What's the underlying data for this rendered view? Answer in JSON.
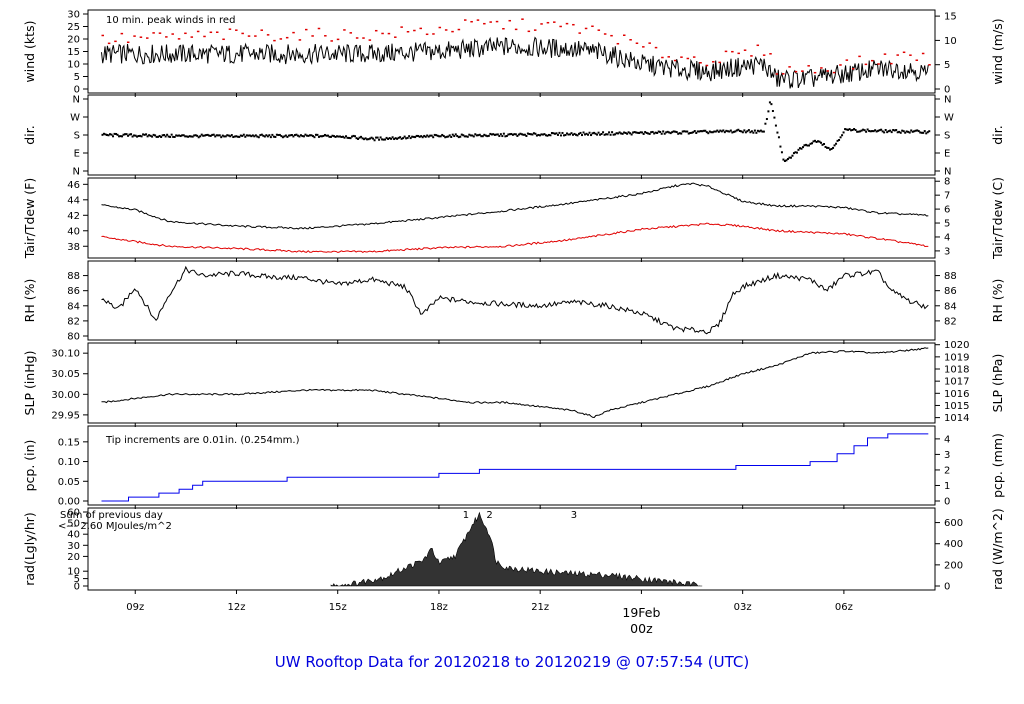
{
  "footer": "UW Rooftop Data for 20120218  to  20120219 @ 07:57:54  (UTC)",
  "colors": {
    "red": "#e00000",
    "blue": "#0000ee",
    "purple": "#9900cc",
    "black": "#000000"
  },
  "chart_data": [
    {
      "type": "line",
      "id": "wind",
      "ylabel": "wind (kts)",
      "ylabel_right": "wind (m/s)",
      "annotation": "10 min. peak winds in red",
      "ylim": [
        0,
        30
      ],
      "yticks": [
        0,
        5,
        10,
        15,
        20,
        25,
        30
      ],
      "yticks_right": [
        0,
        5,
        10,
        15
      ],
      "series": [
        {
          "color": "#000000",
          "x": [
            8.0,
            10.0,
            12.0,
            14.0,
            16.0,
            18.0,
            19.0,
            20.0,
            22.0,
            23.0,
            24.0,
            25.0,
            26.0,
            27.0,
            27.6,
            28.0,
            29.0,
            30.0,
            31.0,
            32.0,
            32.5
          ],
          "values": [
            14,
            14,
            14,
            14,
            14,
            15,
            16,
            17,
            16,
            14,
            10,
            8,
            7,
            9,
            10,
            4,
            4,
            6,
            8,
            8,
            6
          ]
        },
        {
          "color": "#e00000",
          "style": "dots",
          "x": [
            8.0,
            10.0,
            12.0,
            14.0,
            16.0,
            18.0,
            19.0,
            20.0,
            22.0,
            23.0,
            24.0,
            25.0,
            26.0,
            27.0,
            27.6,
            28.0,
            29.0,
            30.0,
            31.0,
            32.0,
            32.5
          ],
          "values": [
            20,
            21,
            22,
            22,
            22,
            24,
            26,
            26,
            25,
            22,
            17,
            13,
            12,
            14,
            16,
            8,
            8,
            10,
            12,
            14,
            12
          ]
        }
      ]
    },
    {
      "type": "scatter",
      "id": "dir",
      "ylabel": "dir.",
      "ylabel_right": "dir.",
      "yticks": [
        "N",
        "E",
        "S",
        "W",
        "N"
      ],
      "yticks_right": [
        "N",
        "E",
        "S",
        "W",
        "N"
      ],
      "series": [
        {
          "color": "#000000",
          "x": [
            8.0,
            10.0,
            12.0,
            14.0,
            15.0,
            16.0,
            18.0,
            20.0,
            22.0,
            24.0,
            26.0,
            27.0,
            27.6,
            27.8,
            28.2,
            28.7,
            29.2,
            29.6,
            30.0,
            31.0,
            32.5
          ],
          "values": [
            185,
            180,
            180,
            180,
            180,
            165,
            180,
            185,
            190,
            195,
            200,
            205,
            200,
            360,
            45,
            120,
            160,
            110,
            210,
            205,
            200
          ]
        }
      ]
    },
    {
      "type": "line",
      "id": "temp",
      "ylabel": "Tair/Tdew (F)",
      "ylabel_right": "Tair/Tdew (C)",
      "ylim": [
        37,
        46.3
      ],
      "yticks": [
        38,
        40,
        42,
        44,
        46
      ],
      "yticks_right": [
        3,
        4,
        5,
        6,
        7,
        8
      ],
      "series": [
        {
          "color": "#000000",
          "x": [
            8.0,
            9.0,
            10.0,
            12.0,
            14.0,
            16.0,
            18.0,
            20.0,
            22.0,
            24.0,
            25.0,
            25.5,
            26.0,
            27.0,
            28.0,
            29.0,
            30.0,
            31.0,
            32.5
          ],
          "values": [
            43.3,
            42.7,
            41.2,
            40.6,
            40.3,
            40.9,
            41.7,
            42.6,
            43.6,
            44.8,
            45.8,
            46.1,
            45.7,
            43.8,
            43.2,
            43.2,
            43.0,
            42.3,
            42.0
          ]
        },
        {
          "color": "#e00000",
          "x": [
            8.0,
            10.0,
            12.0,
            14.0,
            16.0,
            18.0,
            20.0,
            22.0,
            24.0,
            26.0,
            27.0,
            28.0,
            29.0,
            30.0,
            31.0,
            32.5
          ],
          "values": [
            39.2,
            38.0,
            37.7,
            37.3,
            37.3,
            37.8,
            38.0,
            38.9,
            40.2,
            40.9,
            40.6,
            40.0,
            39.8,
            39.6,
            39.0,
            38.0
          ]
        }
      ]
    },
    {
      "type": "line",
      "id": "rh",
      "ylabel": "RH (%)",
      "ylabel_right": "RH (%)",
      "ylim": [
        80,
        89.4
      ],
      "yticks": [
        80,
        82,
        84,
        86,
        88
      ],
      "yticks_right": [
        82,
        84,
        86,
        88
      ],
      "series": [
        {
          "color": "#000000",
          "x": [
            8.0,
            8.5,
            9.0,
            9.6,
            10.0,
            10.5,
            11.0,
            12.0,
            13.0,
            14.0,
            15.0,
            16.0,
            17.0,
            17.5,
            18.0,
            19.0,
            20.0,
            21.0,
            22.0,
            23.0,
            24.0,
            25.0,
            26.0,
            26.3,
            26.7,
            27.0,
            28.0,
            29.0,
            29.5,
            30.0,
            31.0,
            31.4,
            32.0,
            32.5
          ],
          "values": [
            85.0,
            83.5,
            86.5,
            82.0,
            85.5,
            88.8,
            88.0,
            88.3,
            87.8,
            87.7,
            86.8,
            87.5,
            86.5,
            82.8,
            85.0,
            84.5,
            84.2,
            84.0,
            84.5,
            84.0,
            83.0,
            81.0,
            80.6,
            81.5,
            85.5,
            86.5,
            88.0,
            87.5,
            86.0,
            88.0,
            88.5,
            86.0,
            84.5,
            83.8
          ]
        }
      ]
    },
    {
      "type": "line",
      "id": "slp",
      "ylabel": "SLP (inHg)",
      "ylabel_right": "SLP (hPa)",
      "ylim": [
        29.94,
        30.115
      ],
      "yticks": [
        29.95,
        30.0,
        30.05,
        30.1
      ],
      "yticks_right": [
        1014,
        1015,
        1016,
        1017,
        1018,
        1019,
        1020
      ],
      "series": [
        {
          "color": "#000000",
          "x": [
            8.0,
            9.0,
            10.0,
            12.0,
            14.0,
            15.0,
            16.0,
            17.0,
            18.0,
            19.0,
            20.0,
            21.0,
            22.0,
            22.6,
            23.0,
            24.0,
            25.0,
            26.0,
            27.0,
            28.0,
            29.0,
            30.0,
            31.0,
            32.0,
            32.5
          ],
          "values": [
            29.98,
            29.99,
            30.0,
            30.0,
            30.01,
            30.01,
            30.01,
            30.0,
            29.99,
            29.98,
            29.98,
            29.97,
            29.96,
            29.945,
            29.96,
            29.98,
            30.0,
            30.02,
            30.05,
            30.07,
            30.1,
            30.105,
            30.1,
            30.108,
            30.112
          ]
        }
      ]
    },
    {
      "type": "line",
      "id": "pcp",
      "ylabel": "pcp. (in)",
      "ylabel_right": "pcp. (mm)",
      "annotation": "Tip increments are 0.01in. (0.254mm.)",
      "ylim": [
        0,
        0.18
      ],
      "yticks": [
        0,
        0.05,
        0.1,
        0.15
      ],
      "yticks_right": [
        0,
        1,
        2,
        3,
        4
      ],
      "series": [
        {
          "color": "#0000ee",
          "style": "step",
          "x": [
            8.0,
            8.8,
            9.7,
            10.3,
            10.7,
            11.0,
            13.5,
            15.0,
            18.0,
            19.2,
            23.0,
            26.0,
            26.8,
            29.0,
            29.8,
            30.3,
            30.7,
            31.3,
            32.5
          ],
          "values": [
            0,
            0.01,
            0.02,
            0.03,
            0.04,
            0.05,
            0.06,
            0.06,
            0.07,
            0.08,
            0.08,
            0.08,
            0.09,
            0.1,
            0.12,
            0.14,
            0.16,
            0.17,
            0.17
          ]
        }
      ]
    },
    {
      "type": "area",
      "id": "rad",
      "ylabel": "rad(Lgly/hr)",
      "ylabel_right": "rad (W/m^2)",
      "annotation": [
        "Sum of previous day",
        "<--- 2.60 MJoules/m^2"
      ],
      "markers": [
        {
          "label": "1",
          "x": 18.8
        },
        {
          "label": "2",
          "x": 19.5
        },
        {
          "label": "3",
          "x": 22.0
        }
      ],
      "ylim": [
        0,
        60
      ],
      "yticks": [
        0,
        5,
        10,
        20,
        30,
        40,
        50,
        60
      ],
      "yticks_right": [
        0,
        200,
        400,
        600
      ],
      "series": [
        {
          "color": "#000000",
          "x": [
            14.8,
            15.5,
            16.0,
            16.5,
            17.0,
            17.5,
            17.8,
            18.0,
            18.5,
            19.0,
            19.2,
            19.5,
            19.7,
            20.0,
            21.0,
            22.0,
            23.0,
            24.0,
            25.0,
            25.8
          ],
          "values": [
            0,
            2,
            5,
            8,
            15,
            20,
            30,
            18,
            25,
            50,
            58,
            42,
            20,
            15,
            12,
            10,
            9,
            6,
            3,
            0
          ]
        }
      ]
    }
  ],
  "x_axis": {
    "type": "time",
    "xlim_hours": [
      7.6,
      32.7
    ],
    "ticks": [
      {
        "label": "09z",
        "x": 9
      },
      {
        "label": "12z",
        "x": 12
      },
      {
        "label": "15z",
        "x": 15
      },
      {
        "label": "18z",
        "x": 18
      },
      {
        "label": "21z",
        "x": 21
      },
      {
        "label": "03z",
        "x": 27
      },
      {
        "label": "06z",
        "x": 30
      }
    ],
    "day_tick": {
      "label": "19Feb",
      "sublabel": "00z",
      "x": 24
    }
  }
}
